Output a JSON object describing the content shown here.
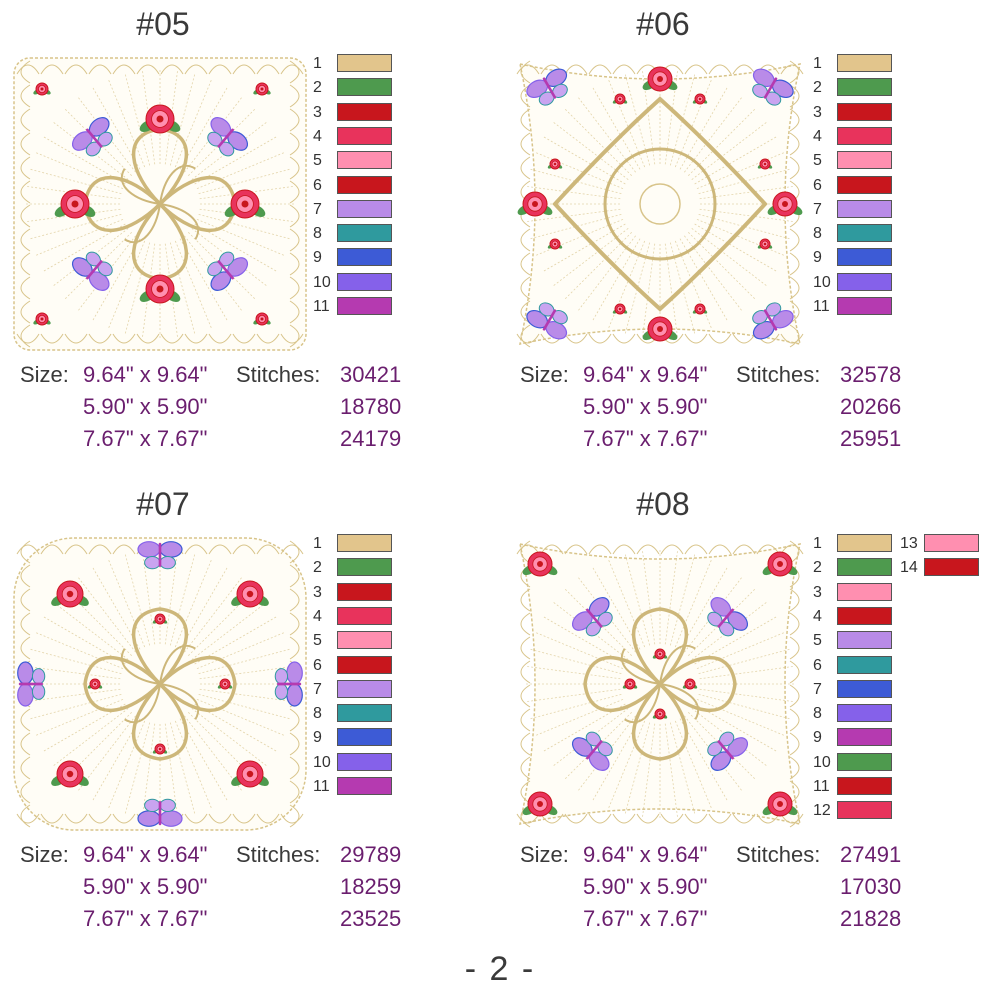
{
  "designs": [
    {
      "title": "#05",
      "colors": [
        "#e2c58c",
        "#4e9a4e",
        "#c8161d",
        "#e8335c",
        "#ff8fb0",
        "#c8161d",
        "#b98be8",
        "#2f9a9e",
        "#3d5bd6",
        "#8561ea",
        "#b53ab0"
      ],
      "numbers": [
        "1",
        "2",
        "3",
        "4",
        "5",
        "6",
        "7",
        "8",
        "9",
        "10",
        "11"
      ],
      "size_label": "Size:",
      "stitches_label": "Stitches:",
      "sizes": [
        "9.64\" x 9.64\"",
        "5.90\" x 5.90\"",
        "7.67\" x 7.67\""
      ],
      "stitches": [
        "30421",
        "18780",
        "24179"
      ]
    },
    {
      "title": "#06",
      "colors": [
        "#e2c58c",
        "#4e9a4e",
        "#c8161d",
        "#e8335c",
        "#ff8fb0",
        "#c8161d",
        "#b98be8",
        "#2f9a9e",
        "#3d5bd6",
        "#8561ea",
        "#b53ab0"
      ],
      "numbers": [
        "1",
        "2",
        "3",
        "4",
        "5",
        "6",
        "7",
        "8",
        "9",
        "10",
        "11"
      ],
      "size_label": "Size:",
      "stitches_label": "Stitches:",
      "sizes": [
        "9.64\" x 9.64\"",
        "5.90\" x 5.90\"",
        "7.67\" x 7.67\""
      ],
      "stitches": [
        "32578",
        "20266",
        "25951"
      ]
    },
    {
      "title": "#07",
      "colors": [
        "#e2c58c",
        "#4e9a4e",
        "#c8161d",
        "#e8335c",
        "#ff8fb0",
        "#c8161d",
        "#b98be8",
        "#2f9a9e",
        "#3d5bd6",
        "#8561ea",
        "#b53ab0"
      ],
      "numbers": [
        "1",
        "2",
        "3",
        "4",
        "5",
        "6",
        "7",
        "8",
        "9",
        "10",
        "11"
      ],
      "size_label": "Size:",
      "stitches_label": "Stitches:",
      "sizes": [
        "9.64\" x 9.64\"",
        "5.90\" x 5.90\"",
        "7.67\" x 7.67\""
      ],
      "stitches": [
        "29789",
        "18259",
        "23525"
      ]
    },
    {
      "title": "#08",
      "colors": [
        "#e2c58c",
        "#4e9a4e",
        "#ff8fb0",
        "#c8161d",
        "#b98be8",
        "#2f9a9e",
        "#3d5bd6",
        "#8561ea",
        "#b53ab0",
        "#4e9a4e",
        "#c8161d",
        "#e8335c",
        "#ff8fb0",
        "#c8161d"
      ],
      "numbers": [
        "1",
        "2",
        "3",
        "4",
        "5",
        "6",
        "7",
        "8",
        "9",
        "10",
        "11",
        "12",
        "13",
        "14"
      ],
      "size_label": "Size:",
      "stitches_label": "Stitches:",
      "sizes": [
        "9.64\" x 9.64\"",
        "5.90\" x 5.90\"",
        "7.67\" x 7.67\""
      ],
      "stitches": [
        "27491",
        "17030",
        "21828"
      ]
    }
  ],
  "page_number": "- 2 -",
  "accent_colors": {
    "thread_gold": "#d8c48a",
    "value_purple": "#6a1e6e"
  }
}
